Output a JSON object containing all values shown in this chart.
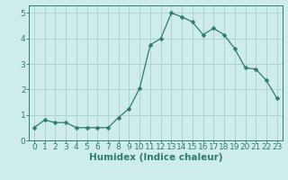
{
  "x": [
    0,
    1,
    2,
    3,
    4,
    5,
    6,
    7,
    8,
    9,
    10,
    11,
    12,
    13,
    14,
    15,
    16,
    17,
    18,
    19,
    20,
    21,
    22,
    23
  ],
  "y": [
    0.5,
    0.8,
    0.7,
    0.7,
    0.5,
    0.5,
    0.5,
    0.5,
    0.9,
    1.25,
    2.05,
    3.75,
    4.0,
    5.0,
    4.85,
    4.65,
    4.15,
    4.4,
    4.15,
    3.6,
    2.85,
    2.8,
    2.35,
    1.65
  ],
  "line_color": "#2e7d6e",
  "marker": "D",
  "marker_size": 2.5,
  "bg_color": "#ceecea",
  "grid_color": "#aacfcc",
  "tick_color": "#2e7d6e",
  "label_color": "#2e7d6e",
  "xlabel": "Humidex (Indice chaleur)",
  "ylim": [
    0,
    5.3
  ],
  "xlim": [
    -0.5,
    23.5
  ],
  "yticks": [
    0,
    1,
    2,
    3,
    4,
    5
  ],
  "xticks": [
    0,
    1,
    2,
    3,
    4,
    5,
    6,
    7,
    8,
    9,
    10,
    11,
    12,
    13,
    14,
    15,
    16,
    17,
    18,
    19,
    20,
    21,
    22,
    23
  ],
  "font_size": 6.5,
  "xlabel_font_size": 7.5
}
